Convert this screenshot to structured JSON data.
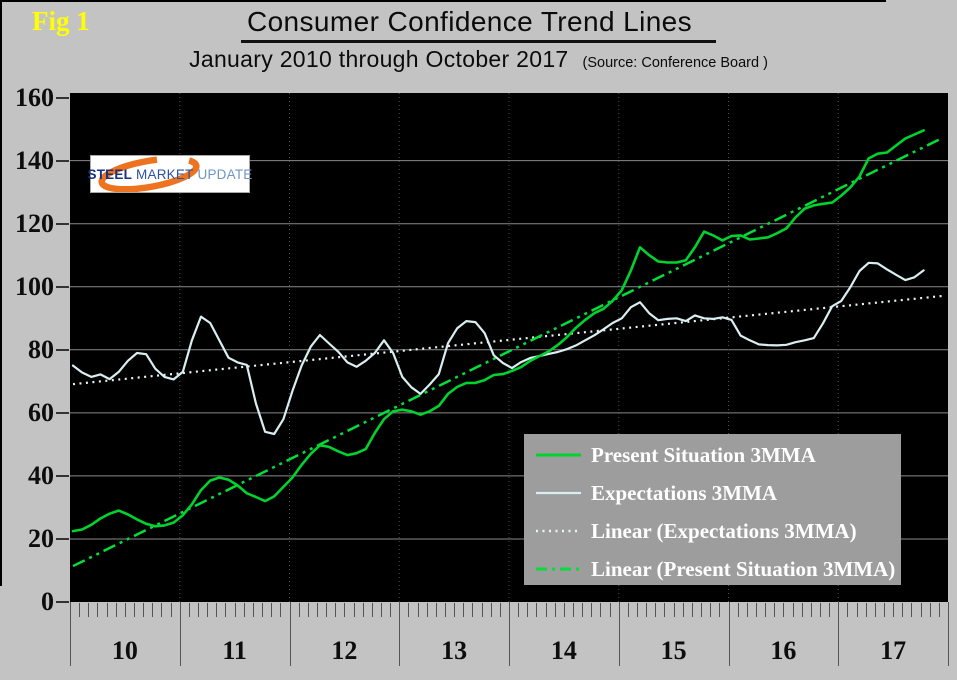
{
  "fig_label": "Fig 1",
  "header": {
    "title": "Consumer Confidence Trend Lines",
    "subtitle": "January 2010 through October 2017",
    "source": "(Source: Conference Board )"
  },
  "logo": {
    "steel": "STEEL",
    "market": "MARKET",
    "update": "UPDATE"
  },
  "colors": {
    "page_bg": "#c3c3c3",
    "plot_bg": "#000000",
    "present": "#00d22e",
    "expectations": "#d9eef0",
    "trend_present": "#00e038",
    "trend_expectations": "#e8f6f8",
    "grid_h": "#8a8a8a",
    "grid_v": "#4f4f4f",
    "legend_bg": "#9d9d9d",
    "legend_text": "#ffffff",
    "fig_yellow": "#ffff00",
    "logo_navy": "#16317d",
    "logo_blue": "#2b52a3",
    "logo_light": "#6f95c5",
    "logo_orange": "#ee7320"
  },
  "legend": {
    "items": [
      {
        "label": "Present Situation 3MMA",
        "color_key": "present",
        "dash": "",
        "width": 3
      },
      {
        "label": "Expectations 3MMA",
        "color_key": "expectations",
        "dash": "",
        "width": 2.2
      },
      {
        "label": "Linear (Expectations 3MMA)",
        "color_key": "trend_expectations",
        "dash": "2 4.5",
        "width": 2.6
      },
      {
        "label": "Linear (Present Situation 3MMA)",
        "color_key": "trend_present",
        "dash": "11 5 3 5",
        "width": 3
      }
    ]
  },
  "chart_data": {
    "type": "line",
    "start": "2010-01",
    "end": "2017-10",
    "frequency": "monthly",
    "ylim": [
      0,
      160
    ],
    "y_ticks": [
      0,
      20,
      40,
      60,
      80,
      100,
      120,
      140,
      160
    ],
    "x_labels": [
      "10",
      "11",
      "12",
      "13",
      "14",
      "15",
      "16",
      "17"
    ],
    "grid": {
      "horizontal": "solid",
      "vertical": "dotted"
    },
    "legend_position": "inside-lower-right",
    "series": [
      {
        "name": "Present Situation 3MMA",
        "color_key": "present",
        "width": 2.6,
        "values": [
          22.5,
          23.0,
          24.5,
          26.5,
          28.0,
          29.0,
          27.8,
          26.2,
          24.8,
          24.0,
          24.3,
          25.2,
          27.5,
          31.0,
          35.5,
          38.5,
          39.5,
          38.8,
          37.0,
          34.5,
          33.3,
          32.0,
          33.5,
          36.5,
          39.5,
          43.5,
          47.0,
          49.7,
          49.2,
          47.8,
          46.6,
          47.2,
          48.5,
          53.6,
          58.0,
          60.5,
          61.0,
          60.5,
          59.4,
          60.5,
          62.2,
          66.0,
          68.2,
          69.5,
          69.5,
          70.4,
          72.0,
          72.3,
          73.3,
          74.5,
          76.5,
          78.0,
          79.5,
          81.5,
          84.0,
          87.0,
          89.5,
          91.6,
          93.0,
          95.5,
          98.9,
          105.2,
          112.5,
          110.0,
          108.0,
          107.7,
          107.7,
          108.4,
          112.5,
          117.5,
          116.3,
          114.7,
          116.1,
          116.3,
          115.0,
          115.3,
          115.7,
          117.0,
          118.5,
          122.0,
          124.8,
          125.8,
          126.3,
          126.7,
          128.9,
          131.5,
          135.0,
          140.7,
          142.2,
          142.6,
          144.8,
          147.0,
          148.3,
          149.6
        ]
      },
      {
        "name": "Expectations 3MMA",
        "color_key": "expectations",
        "width": 2.2,
        "values": [
          75.0,
          72.8,
          71.4,
          72.2,
          70.7,
          73.0,
          76.5,
          79.0,
          78.6,
          74.0,
          71.4,
          70.6,
          73.0,
          83.0,
          90.5,
          88.5,
          83.0,
          77.5,
          76.0,
          75.2,
          63.0,
          54.0,
          53.3,
          58.0,
          67.0,
          75.0,
          81.0,
          84.7,
          82.0,
          79.4,
          76.0,
          74.6,
          76.5,
          79.0,
          83.0,
          79.0,
          71.4,
          68.1,
          66.0,
          69.0,
          72.3,
          82.1,
          86.8,
          89.1,
          88.8,
          85.3,
          78.3,
          75.8,
          74.2,
          76.1,
          77.4,
          78.0,
          78.7,
          79.3,
          80.2,
          81.4,
          83.0,
          84.6,
          86.5,
          88.5,
          90.0,
          93.5,
          95.1,
          91.6,
          89.4,
          89.8,
          90.0,
          89.1,
          90.9,
          90.0,
          89.8,
          90.3,
          89.5,
          84.5,
          83.0,
          81.7,
          81.5,
          81.4,
          81.6,
          82.4,
          83.0,
          83.7,
          88.4,
          93.8,
          95.5,
          99.9,
          105.0,
          107.6,
          107.4,
          105.5,
          103.8,
          102.1,
          103.0,
          105.2
        ]
      }
    ],
    "trendlines": [
      {
        "name": "Linear (Expectations 3MMA)",
        "color_key": "trend_expectations",
        "start_value": 69.1,
        "end_value": 97.1,
        "dash": "2 4.5",
        "width": 2.2
      },
      {
        "name": "Linear (Present Situation 3MMA)",
        "color_key": "trend_present",
        "start_value": 11.4,
        "end_value": 147.3,
        "dash": "13 5 3 5 3 5",
        "width": 2.5
      }
    ]
  }
}
